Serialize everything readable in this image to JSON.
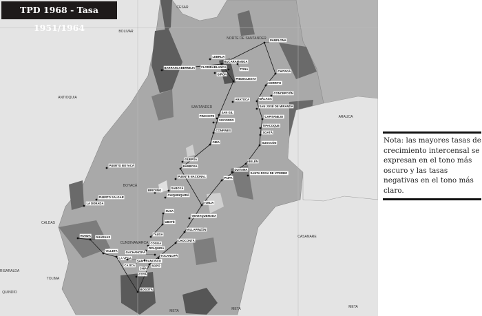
{
  "title": "TPD 1968 - Tasa 1951/1964",
  "note": "Nota: las mayores tasas de crecimiento intercensal se expresan en el tono más oscuro y las tasas negativas en el tono más claro.",
  "colors": {
    "outside": "#e4e4e4",
    "territory": "#a9a9a9",
    "light": "#d0d0d0",
    "dark": "#6a6a6a",
    "darker": "#505050",
    "neighbor": "#b4b4b4"
  },
  "departments": [
    "CESAR",
    "BOLIVAR",
    "ANTIOQUIA",
    "NORTE DE SANTANDER",
    "SANTANDER",
    "ARAUCA",
    "BOYACÁ",
    "CALDAS",
    "CUNDINAMARCA",
    "CASANARE",
    "RISARALDA",
    "TOLIMA",
    "QUINDÍO",
    "META",
    "META",
    "META"
  ],
  "cities": [
    "PAMPLONA",
    "LEBRIJA",
    "BUCARAMANGA",
    "TONA",
    "FLORIDABLANCA",
    "GIRÓN",
    "PIEDECUESTA",
    "BARRANCABERMEJA",
    "CHITAGÁ",
    "CERRITO",
    "CONCEPCIÓN",
    "MÁLAGA",
    "ARATOCA",
    "SAN JOSÉ DE MIRANDA",
    "SAN GIL",
    "PINCHOTE",
    "SOCORRO",
    "CAPITANEJO",
    "TIPACOQUE",
    "CONFINES",
    "SOATÁ",
    "OIBA",
    "SUSACÓN",
    "PUERTO BOYACÁ",
    "GÜEPSA",
    "BARBOSA",
    "BELÉN",
    "DUITAMA",
    "SANTA ROSA DE VITERBO",
    "PAIPA",
    "PUENTE NACIONAL",
    "PUERTO SALGAR",
    "LA DORADA",
    "SABOYÁ",
    "BRICEÑO",
    "CHIQUINQUIRÁ",
    "TUNJA",
    "SUSA",
    "VENTAQUEMADA",
    "UBATÉ",
    "VILLAPINZÓN",
    "TAUSA",
    "CHOCONTÁ",
    "COGUA",
    "ZIPAQUIRÁ",
    "GACHANCIPÁ",
    "TOCANCIPÁ",
    "HONDA",
    "GUADUAS",
    "VILLETA",
    "LA VEGA",
    "SAN FRANCISCO",
    "CAJICÁ",
    "SOPÓ",
    "CHÍA",
    "COTA",
    "BOGOTÁ"
  ]
}
